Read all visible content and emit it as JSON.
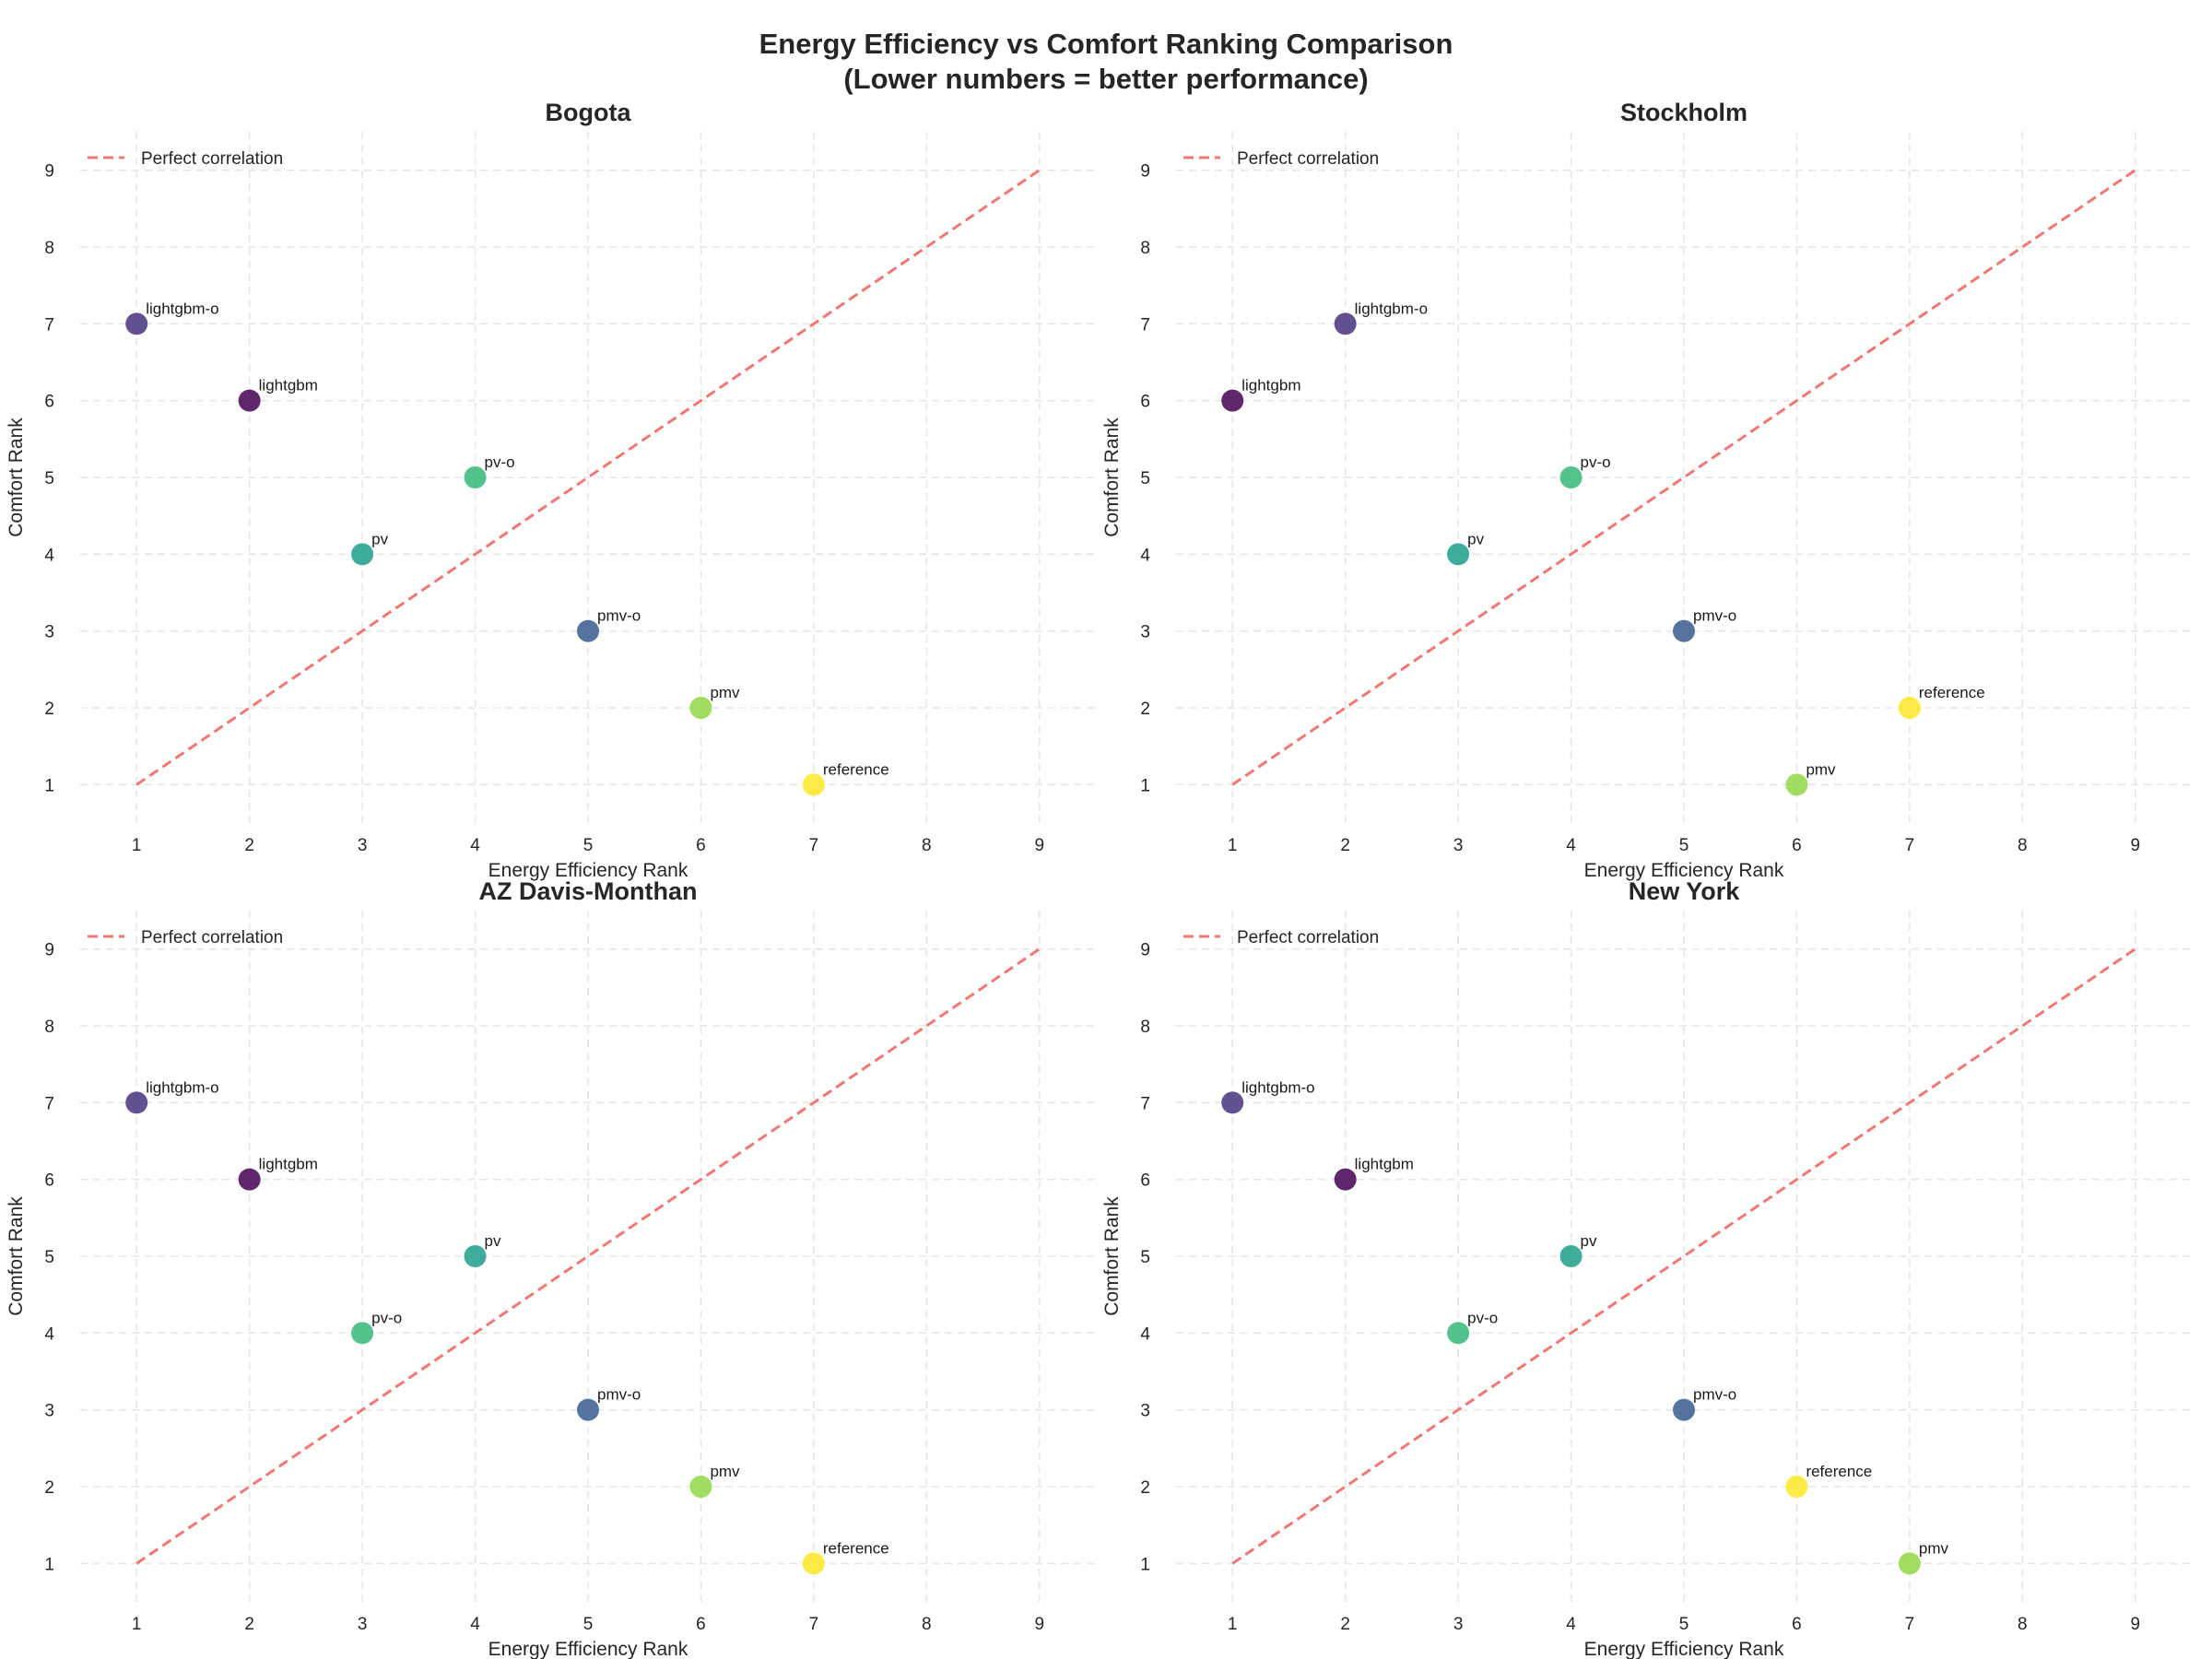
{
  "title": "Energy Efficiency vs Comfort Ranking Comparison",
  "subtitle": "(Lower numbers = better performance)",
  "colors": {
    "lightgbm": "#440154",
    "lightgbm-o": "#46337e",
    "pmv-o": "#365c8d",
    "pv": "#1f9e89",
    "pv-o": "#35b779",
    "pmv": "#8fd744",
    "reference": "#fde725",
    "reference_line": "#f07774"
  },
  "chart_data": [
    {
      "type": "scatter",
      "title": "Bogota",
      "xlabel": "Energy Efficiency Rank",
      "ylabel": "Comfort Rank",
      "xlim": [
        0.5,
        9.5
      ],
      "ylim": [
        0.5,
        9.5
      ],
      "xticks": [
        1,
        2,
        3,
        4,
        5,
        6,
        7,
        8,
        9
      ],
      "yticks": [
        1,
        2,
        3,
        4,
        5,
        6,
        7,
        8,
        9
      ],
      "grid": true,
      "legend": {
        "placement": "top-left",
        "entries": [
          "Perfect correlation"
        ]
      },
      "reference_line": {
        "name": "Perfect correlation",
        "from": [
          1,
          1
        ],
        "to": [
          9,
          9
        ]
      },
      "points": [
        {
          "label": "lightgbm-o",
          "x": 1,
          "y": 7
        },
        {
          "label": "lightgbm",
          "x": 2,
          "y": 6
        },
        {
          "label": "pv",
          "x": 3,
          "y": 4
        },
        {
          "label": "pv-o",
          "x": 4,
          "y": 5
        },
        {
          "label": "pmv-o",
          "x": 5,
          "y": 3
        },
        {
          "label": "pmv",
          "x": 6,
          "y": 2
        },
        {
          "label": "reference",
          "x": 7,
          "y": 1
        }
      ]
    },
    {
      "type": "scatter",
      "title": "Stockholm",
      "xlabel": "Energy Efficiency Rank",
      "ylabel": "Comfort Rank",
      "xlim": [
        0.5,
        9.5
      ],
      "ylim": [
        0.5,
        9.5
      ],
      "xticks": [
        1,
        2,
        3,
        4,
        5,
        6,
        7,
        8,
        9
      ],
      "yticks": [
        1,
        2,
        3,
        4,
        5,
        6,
        7,
        8,
        9
      ],
      "grid": true,
      "legend": {
        "placement": "top-left",
        "entries": [
          "Perfect correlation"
        ]
      },
      "reference_line": {
        "name": "Perfect correlation",
        "from": [
          1,
          1
        ],
        "to": [
          9,
          9
        ]
      },
      "points": [
        {
          "label": "lightgbm",
          "x": 1,
          "y": 6
        },
        {
          "label": "lightgbm-o",
          "x": 2,
          "y": 7
        },
        {
          "label": "pv",
          "x": 3,
          "y": 4
        },
        {
          "label": "pv-o",
          "x": 4,
          "y": 5
        },
        {
          "label": "pmv-o",
          "x": 5,
          "y": 3
        },
        {
          "label": "pmv",
          "x": 6,
          "y": 1
        },
        {
          "label": "reference",
          "x": 7,
          "y": 2
        }
      ]
    },
    {
      "type": "scatter",
      "title": "AZ Davis-Monthan",
      "xlabel": "Energy Efficiency Rank",
      "ylabel": "Comfort Rank",
      "xlim": [
        0.5,
        9.5
      ],
      "ylim": [
        0.5,
        9.5
      ],
      "xticks": [
        1,
        2,
        3,
        4,
        5,
        6,
        7,
        8,
        9
      ],
      "yticks": [
        1,
        2,
        3,
        4,
        5,
        6,
        7,
        8,
        9
      ],
      "grid": true,
      "legend": {
        "placement": "top-left",
        "entries": [
          "Perfect correlation"
        ]
      },
      "reference_line": {
        "name": "Perfect correlation",
        "from": [
          1,
          1
        ],
        "to": [
          9,
          9
        ]
      },
      "points": [
        {
          "label": "lightgbm-o",
          "x": 1,
          "y": 7
        },
        {
          "label": "lightgbm",
          "x": 2,
          "y": 6
        },
        {
          "label": "pv-o",
          "x": 3,
          "y": 4
        },
        {
          "label": "pv",
          "x": 4,
          "y": 5
        },
        {
          "label": "pmv-o",
          "x": 5,
          "y": 3
        },
        {
          "label": "pmv",
          "x": 6,
          "y": 2
        },
        {
          "label": "reference",
          "x": 7,
          "y": 1
        }
      ]
    },
    {
      "type": "scatter",
      "title": "New York",
      "xlabel": "Energy Efficiency Rank",
      "ylabel": "Comfort Rank",
      "xlim": [
        0.5,
        9.5
      ],
      "ylim": [
        0.5,
        9.5
      ],
      "xticks": [
        1,
        2,
        3,
        4,
        5,
        6,
        7,
        8,
        9
      ],
      "yticks": [
        1,
        2,
        3,
        4,
        5,
        6,
        7,
        8,
        9
      ],
      "grid": true,
      "legend": {
        "placement": "top-left",
        "entries": [
          "Perfect correlation"
        ]
      },
      "reference_line": {
        "name": "Perfect correlation",
        "from": [
          1,
          1
        ],
        "to": [
          9,
          9
        ]
      },
      "points": [
        {
          "label": "lightgbm-o",
          "x": 1,
          "y": 7
        },
        {
          "label": "lightgbm",
          "x": 2,
          "y": 6
        },
        {
          "label": "pv-o",
          "x": 3,
          "y": 4
        },
        {
          "label": "pv",
          "x": 4,
          "y": 5
        },
        {
          "label": "pmv-o",
          "x": 5,
          "y": 3
        },
        {
          "label": "reference",
          "x": 6,
          "y": 2
        },
        {
          "label": "pmv",
          "x": 7,
          "y": 1
        }
      ]
    }
  ]
}
